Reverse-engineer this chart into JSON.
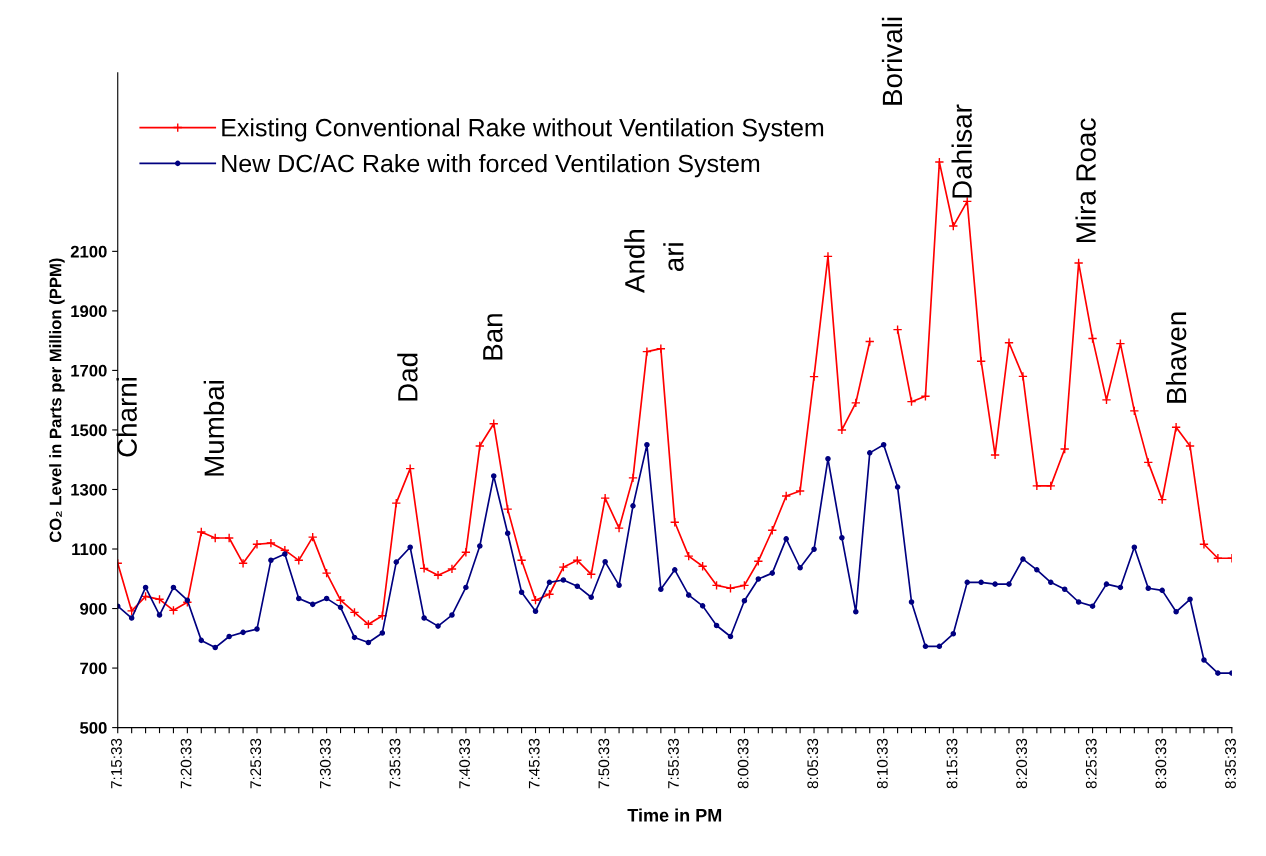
{
  "chart_data": {
    "type": "line",
    "xlabel": "Time in PM",
    "ylabel": "CO₂ Level in Parts per Million (PPM)",
    "categories": [
      "7:15:33",
      null,
      null,
      null,
      null,
      "7:20:33",
      null,
      null,
      null,
      null,
      "7:25:33",
      null,
      null,
      null,
      null,
      "7:30:33",
      null,
      null,
      null,
      null,
      "7:35:33",
      null,
      null,
      null,
      null,
      "7:40:33",
      null,
      null,
      null,
      null,
      "7:45:33",
      null,
      null,
      null,
      null,
      "7:50:33",
      null,
      null,
      null,
      null,
      "7:55:33",
      null,
      null,
      null,
      null,
      "8:00:33",
      null,
      null,
      null,
      null,
      "8:05:33",
      null,
      null,
      null,
      null,
      "8:10:33",
      null,
      null,
      null,
      null,
      "8:15:33",
      null,
      null,
      null,
      null,
      "8:20:33",
      null,
      null,
      null,
      null,
      "8:25:33",
      null,
      null,
      null,
      null,
      "8:30:33",
      null,
      null,
      null,
      null,
      "8:35:33"
    ],
    "series": [
      {
        "name": "Existing Conventional Rake without Ventilation System",
        "color": "#ff0000",
        "marker": "cross",
        "values": [
          1052,
          892,
          941,
          931,
          894,
          921,
          1157,
          1137,
          1137,
          1052,
          1116,
          1120,
          1096,
          1062,
          1140,
          1019,
          928,
          887,
          847,
          876,
          1254,
          1370,
          1035,
          1012,
          1033,
          1089,
          1446,
          1521,
          1234,
          1062,
          928,
          948,
          1039,
          1062,
          1015,
          1271,
          1170,
          1339,
          1763,
          1773,
          1190,
          1076,
          1042,
          978,
          968,
          978,
          1059,
          1163,
          1278,
          1295,
          1679,
          2083,
          1500,
          1591,
          1797,
          null,
          1837,
          1595,
          1613,
          2400,
          2185,
          2268,
          1731,
          1416,
          1793,
          1680,
          1312,
          1312,
          1436,
          2061,
          1807,
          1601,
          1790,
          1564,
          1391,
          1266,
          1509,
          1446,
          1116,
          1069,
          1069
        ]
      },
      {
        "name": "New DC/AC Rake with forced Ventilation System",
        "color": "#000080",
        "marker": "circle",
        "values": [
          908,
          868,
          971,
          878,
          971,
          928,
          793,
          769,
          806,
          820,
          831,
          1062,
          1083,
          934,
          914,
          934,
          904,
          803,
          786,
          818,
          1056,
          1106,
          868,
          841,
          878,
          971,
          1110,
          1345,
          1153,
          955,
          891,
          988,
          996,
          975,
          938,
          1057,
          978,
          1245,
          1450,
          965,
          1030,
          945,
          909,
          843,
          806,
          926,
          999,
          1019,
          1134,
          1037,
          1099,
          1403,
          1138,
          889,
          1423,
          1450,
          1308,
          922,
          773,
          773,
          815,
          988,
          988,
          982,
          982,
          1066,
          1030,
          988,
          965,
          922,
          908,
          982,
          971,
          1106,
          968,
          961,
          889,
          931,
          727,
          683,
          683
        ]
      }
    ],
    "ylim": [
      500,
      2700
    ],
    "yticks": [
      500,
      700,
      900,
      1100,
      1300,
      1500,
      1700,
      1900,
      2100
    ],
    "annotations": [
      "Charni",
      "Mumbai",
      "Dad",
      "Ban",
      "Andh",
      "ari",
      "Borivali",
      "Dahisar",
      "Mira Roac",
      "Bhaven"
    ],
    "legend": "top left",
    "grid": false
  }
}
